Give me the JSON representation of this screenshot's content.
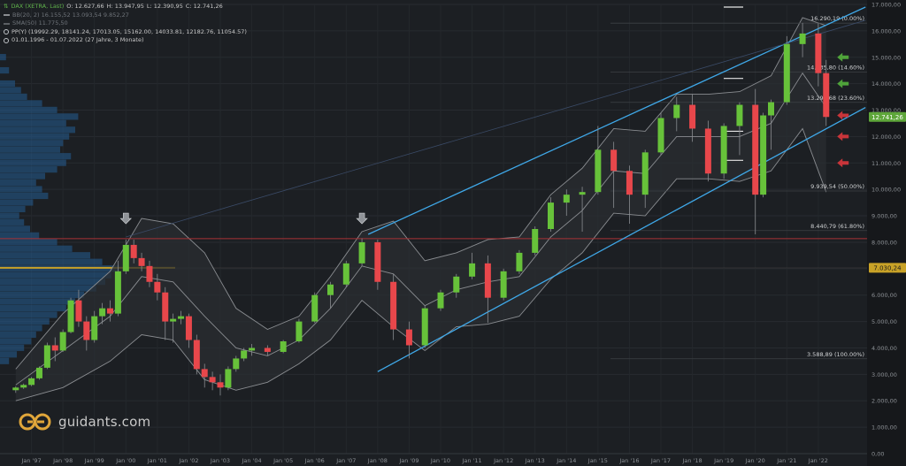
{
  "legend": {
    "main": "DAX (XETRA, Last)",
    "ohlc": {
      "o": "O: 12.627,66",
      "h": "H: 13.947,95",
      "l": "L: 12.390,95",
      "c": "C: 12.741,26"
    },
    "bb": "BB(20, 2)  16.155,52  13.093,54  9.852,27",
    "sma": "SMA(50)  11.775,50",
    "pp": "PP(Y)   (19992.29, 18141.24, 17013.05, 15162.00, 14033.81, 12182.76, 11054.57)",
    "range": "01.01.1996 - 01.07.2022   (27 Jahre, 3 Monate)"
  },
  "brand": {
    "text": "guidants.com"
  },
  "colors": {
    "bull": "#67c23a",
    "bear": "#e8474b",
    "channel": "#3fa8e8",
    "bollinger": "#8a8d91",
    "profile": "#245c94",
    "poc": "#c9a227"
  },
  "chart_data": {
    "type": "candlestick",
    "interval": "monthly",
    "y_scale": "linear",
    "ylim": [
      0,
      17000
    ],
    "y_ticks": [
      "17.000,00",
      "16.000,00",
      "15.000,00",
      "14.000,00",
      "13.000,00",
      "12.000,00",
      "11.000,00",
      "10.000,00",
      "9.000,00",
      "8.000,00",
      "7.000,00",
      "6.000,00",
      "5.000,00",
      "4.000,00",
      "3.000,00",
      "2.000,00",
      "1.000,00",
      "0,00"
    ],
    "x_ticks": [
      "Jan '97",
      "Jan '98",
      "Jan '99",
      "Jan '00",
      "Jan '01",
      "Jan '02",
      "Jan '03",
      "Jan '04",
      "Jan '05",
      "Jan '06",
      "Jan '07",
      "Jan '08",
      "Jan '09",
      "Jan '10",
      "Jan '11",
      "Jan '12",
      "Jan '13",
      "Jan '14",
      "Jan '15",
      "Jan '16",
      "Jan '17",
      "Jan '18",
      "Jan '19",
      "Jan '20",
      "Jan '21",
      "Jan '22"
    ],
    "last_price_label": "12.741,26",
    "poc_label": "7.030,24",
    "fib_levels": [
      {
        "label": "16.290,19 (0.00%)",
        "value": 16290.19
      },
      {
        "label": "14.435,80 (14.60%)",
        "value": 14435.8
      },
      {
        "label": "13.292,68 (23.60%)",
        "value": 13292.68
      },
      {
        "label": "9.939,54 (50.00%)",
        "value": 9939.54
      },
      {
        "label": "8.440,79 (61.80%)",
        "value": 8440.79
      },
      {
        "label": "3.588,89 (100.00%)",
        "value": 3588.89
      }
    ],
    "horizontal_line": 8136,
    "candles": [
      {
        "t": 1996.5,
        "o": 2400,
        "h": 2550,
        "l": 2300,
        "c": 2500
      },
      {
        "t": 1996.75,
        "o": 2500,
        "h": 2650,
        "l": 2450,
        "c": 2600
      },
      {
        "t": 1997.0,
        "o": 2600,
        "h": 2900,
        "l": 2550,
        "c": 2850
      },
      {
        "t": 1997.25,
        "o": 2850,
        "h": 3300,
        "l": 2800,
        "c": 3250
      },
      {
        "t": 1997.5,
        "o": 3250,
        "h": 4200,
        "l": 3200,
        "c": 4100
      },
      {
        "t": 1997.75,
        "o": 4100,
        "h": 4400,
        "l": 3500,
        "c": 3900
      },
      {
        "t": 1998.0,
        "o": 3900,
        "h": 4700,
        "l": 3850,
        "c": 4600
      },
      {
        "t": 1998.25,
        "o": 4600,
        "h": 5900,
        "l": 4550,
        "c": 5800
      },
      {
        "t": 1998.5,
        "o": 5800,
        "h": 6200,
        "l": 4800,
        "c": 5000
      },
      {
        "t": 1998.75,
        "o": 5000,
        "h": 5200,
        "l": 3900,
        "c": 4300
      },
      {
        "t": 1999.0,
        "o": 4300,
        "h": 5400,
        "l": 4200,
        "c": 5200
      },
      {
        "t": 1999.25,
        "o": 5200,
        "h": 5700,
        "l": 4900,
        "c": 5500
      },
      {
        "t": 1999.5,
        "o": 5500,
        "h": 5800,
        "l": 5000,
        "c": 5300
      },
      {
        "t": 1999.75,
        "o": 5300,
        "h": 7300,
        "l": 5200,
        "c": 6900
      },
      {
        "t": 2000.0,
        "o": 6900,
        "h": 8100,
        "l": 6800,
        "c": 7900
      },
      {
        "t": 2000.25,
        "o": 7900,
        "h": 8100,
        "l": 7200,
        "c": 7400
      },
      {
        "t": 2000.5,
        "o": 7400,
        "h": 7600,
        "l": 6900,
        "c": 7100
      },
      {
        "t": 2000.75,
        "o": 7100,
        "h": 7300,
        "l": 6300,
        "c": 6500
      },
      {
        "t": 2001.0,
        "o": 6500,
        "h": 6800,
        "l": 5800,
        "c": 6100
      },
      {
        "t": 2001.25,
        "o": 6100,
        "h": 6300,
        "l": 4300,
        "c": 5000
      },
      {
        "t": 2001.5,
        "o": 5000,
        "h": 5300,
        "l": 4200,
        "c": 5100
      },
      {
        "t": 2001.75,
        "o": 5100,
        "h": 5400,
        "l": 4900,
        "c": 5200
      },
      {
        "t": 2002.0,
        "o": 5200,
        "h": 5300,
        "l": 4000,
        "c": 4300
      },
      {
        "t": 2002.25,
        "o": 4300,
        "h": 4500,
        "l": 3000,
        "c": 3200
      },
      {
        "t": 2002.5,
        "o": 3200,
        "h": 3400,
        "l": 2500,
        "c": 2900
      },
      {
        "t": 2002.75,
        "o": 2900,
        "h": 3100,
        "l": 2400,
        "c": 2700
      },
      {
        "t": 2003.0,
        "o": 2700,
        "h": 3000,
        "l": 2200,
        "c": 2500
      },
      {
        "t": 2003.25,
        "o": 2500,
        "h": 3300,
        "l": 2400,
        "c": 3200
      },
      {
        "t": 2003.5,
        "o": 3200,
        "h": 3700,
        "l": 3100,
        "c": 3600
      },
      {
        "t": 2003.75,
        "o": 3600,
        "h": 4000,
        "l": 3500,
        "c": 3900
      },
      {
        "t": 2004.0,
        "o": 3900,
        "h": 4150,
        "l": 3700,
        "c": 4000
      },
      {
        "t": 2004.5,
        "o": 4000,
        "h": 4100,
        "l": 3700,
        "c": 3850
      },
      {
        "t": 2005.0,
        "o": 3850,
        "h": 4300,
        "l": 3800,
        "c": 4250
      },
      {
        "t": 2005.5,
        "o": 4250,
        "h": 5100,
        "l": 4200,
        "c": 5000
      },
      {
        "t": 2006.0,
        "o": 5000,
        "h": 6100,
        "l": 4950,
        "c": 6000
      },
      {
        "t": 2006.5,
        "o": 6000,
        "h": 6500,
        "l": 5500,
        "c": 6400
      },
      {
        "t": 2007.0,
        "o": 6400,
        "h": 7300,
        "l": 6300,
        "c": 7200
      },
      {
        "t": 2007.5,
        "o": 7200,
        "h": 8150,
        "l": 7100,
        "c": 8000
      },
      {
        "t": 2008.0,
        "o": 8000,
        "h": 8100,
        "l": 6200,
        "c": 6500
      },
      {
        "t": 2008.5,
        "o": 6500,
        "h": 6800,
        "l": 4300,
        "c": 4700
      },
      {
        "t": 2009.0,
        "o": 4700,
        "h": 5000,
        "l": 3600,
        "c": 4100
      },
      {
        "t": 2009.5,
        "o": 4100,
        "h": 5600,
        "l": 4000,
        "c": 5500
      },
      {
        "t": 2010.0,
        "o": 5500,
        "h": 6200,
        "l": 5400,
        "c": 6100
      },
      {
        "t": 2010.5,
        "o": 6100,
        "h": 6800,
        "l": 5900,
        "c": 6700
      },
      {
        "t": 2011.0,
        "o": 6700,
        "h": 7600,
        "l": 6600,
        "c": 7200
      },
      {
        "t": 2011.5,
        "o": 7200,
        "h": 7500,
        "l": 4950,
        "c": 5900
      },
      {
        "t": 2012.0,
        "o": 5900,
        "h": 7000,
        "l": 5800,
        "c": 6900
      },
      {
        "t": 2012.5,
        "o": 6900,
        "h": 7700,
        "l": 6800,
        "c": 7600
      },
      {
        "t": 2013.0,
        "o": 7600,
        "h": 8600,
        "l": 7500,
        "c": 8500
      },
      {
        "t": 2013.5,
        "o": 8500,
        "h": 9700,
        "l": 8400,
        "c": 9500
      },
      {
        "t": 2014.0,
        "o": 9500,
        "h": 10000,
        "l": 9000,
        "c": 9800
      },
      {
        "t": 2014.5,
        "o": 9800,
        "h": 10100,
        "l": 8400,
        "c": 9900
      },
      {
        "t": 2015.0,
        "o": 9900,
        "h": 12400,
        "l": 9800,
        "c": 11500
      },
      {
        "t": 2015.5,
        "o": 11500,
        "h": 11800,
        "l": 9300,
        "c": 10700
      },
      {
        "t": 2016.0,
        "o": 10700,
        "h": 10900,
        "l": 8700,
        "c": 9800
      },
      {
        "t": 2016.5,
        "o": 9800,
        "h": 11500,
        "l": 9300,
        "c": 11400
      },
      {
        "t": 2017.0,
        "o": 11400,
        "h": 12900,
        "l": 11300,
        "c": 12700
      },
      {
        "t": 2017.5,
        "o": 12700,
        "h": 13500,
        "l": 12200,
        "c": 13200
      },
      {
        "t": 2018.0,
        "o": 13200,
        "h": 13600,
        "l": 11800,
        "c": 12300
      },
      {
        "t": 2018.5,
        "o": 12300,
        "h": 12600,
        "l": 10300,
        "c": 10600
      },
      {
        "t": 2019.0,
        "o": 10600,
        "h": 12500,
        "l": 10400,
        "c": 12400
      },
      {
        "t": 2019.5,
        "o": 12400,
        "h": 13300,
        "l": 11300,
        "c": 13200
      },
      {
        "t": 2020.0,
        "o": 13200,
        "h": 13800,
        "l": 8300,
        "c": 9800
      },
      {
        "t": 2020.25,
        "o": 9800,
        "h": 12900,
        "l": 9700,
        "c": 12800
      },
      {
        "t": 2020.5,
        "o": 12800,
        "h": 13400,
        "l": 11500,
        "c": 13300
      },
      {
        "t": 2021.0,
        "o": 13300,
        "h": 15800,
        "l": 13200,
        "c": 15500
      },
      {
        "t": 2021.5,
        "o": 15500,
        "h": 16300,
        "l": 15000,
        "c": 15900
      },
      {
        "t": 2022.0,
        "o": 15900,
        "h": 16300,
        "l": 13900,
        "c": 14400
      },
      {
        "t": 2022.25,
        "o": 14400,
        "h": 14900,
        "l": 12400,
        "c": 12741
      }
    ],
    "bollinger": {
      "t": [
        1996.5,
        1998,
        1999.5,
        2000.5,
        2001.5,
        2002.5,
        2003.5,
        2004.5,
        2005.5,
        2006.5,
        2007.5,
        2008.5,
        2009.5,
        2010.5,
        2011.5,
        2012.5,
        2013.5,
        2014.5,
        2015.5,
        2016.5,
        2017.5,
        2018.5,
        2019.5,
        2020.5,
        2021.5,
        2022.25
      ],
      "upper": [
        3200,
        5300,
        6900,
        8900,
        8700,
        7600,
        5500,
        4700,
        5200,
        6700,
        8400,
        8800,
        7300,
        7600,
        8100,
        8200,
        9800,
        10800,
        12300,
        12200,
        13600,
        13600,
        13700,
        14300,
        16500,
        16200
      ],
      "middle": [
        2600,
        3900,
        5200,
        6700,
        6500,
        5200,
        4000,
        3700,
        4300,
        5500,
        7100,
        6800,
        5600,
        6200,
        6500,
        6700,
        8200,
        9200,
        10700,
        10600,
        12000,
        12000,
        12000,
        12500,
        14400,
        13100
      ],
      "lower": [
        2000,
        2500,
        3500,
        4500,
        4300,
        2800,
        2400,
        2700,
        3400,
        4300,
        5800,
        4800,
        3900,
        4800,
        4900,
        5200,
        6600,
        7600,
        9100,
        9000,
        10400,
        10400,
        10300,
        10700,
        12300,
        9900
      ]
    },
    "volume_profile": [
      {
        "p": 3500,
        "w": 15
      },
      {
        "p": 3750,
        "w": 28
      },
      {
        "p": 4000,
        "w": 40
      },
      {
        "p": 4250,
        "w": 52
      },
      {
        "p": 4500,
        "w": 60
      },
      {
        "p": 4750,
        "w": 70
      },
      {
        "p": 5000,
        "w": 82
      },
      {
        "p": 5250,
        "w": 95
      },
      {
        "p": 5500,
        "w": 110
      },
      {
        "p": 5750,
        "w": 125
      },
      {
        "p": 6000,
        "w": 140
      },
      {
        "p": 6250,
        "w": 160
      },
      {
        "p": 6500,
        "w": 175
      },
      {
        "p": 6750,
        "w": 185
      },
      {
        "p": 7000,
        "w": 198
      },
      {
        "p": 7250,
        "w": 170
      },
      {
        "p": 7500,
        "w": 150
      },
      {
        "p": 7750,
        "w": 120
      },
      {
        "p": 8000,
        "w": 95
      },
      {
        "p": 8250,
        "w": 65
      },
      {
        "p": 8500,
        "w": 50
      },
      {
        "p": 8750,
        "w": 40
      },
      {
        "p": 9000,
        "w": 32
      },
      {
        "p": 9250,
        "w": 42
      },
      {
        "p": 9500,
        "w": 55
      },
      {
        "p": 9750,
        "w": 80
      },
      {
        "p": 10000,
        "w": 70
      },
      {
        "p": 10250,
        "w": 60
      },
      {
        "p": 10500,
        "w": 75
      },
      {
        "p": 10750,
        "w": 95
      },
      {
        "p": 11000,
        "w": 110
      },
      {
        "p": 11250,
        "w": 118
      },
      {
        "p": 11500,
        "w": 100
      },
      {
        "p": 11750,
        "w": 105
      },
      {
        "p": 12000,
        "w": 115
      },
      {
        "p": 12250,
        "w": 125
      },
      {
        "p": 12500,
        "w": 110
      },
      {
        "p": 12750,
        "w": 130
      },
      {
        "p": 13000,
        "w": 95
      },
      {
        "p": 13250,
        "w": 70
      },
      {
        "p": 13500,
        "w": 45
      },
      {
        "p": 13750,
        "w": 35
      },
      {
        "p": 14000,
        "w": 25
      },
      {
        "p": 14500,
        "w": 15
      },
      {
        "p": 15000,
        "w": 10
      }
    ],
    "channel": {
      "upper": [
        [
          2007.7,
          8300
        ],
        [
          2023.5,
          16900
        ]
      ],
      "lower": [
        [
          2008.0,
          3100
        ],
        [
          2023.5,
          13100
        ]
      ],
      "mid": [
        [
          2000,
          8200
        ],
        [
          2023.5,
          16400
        ]
      ]
    },
    "markers_down": [
      {
        "t": 2000.0,
        "v": 8700
      },
      {
        "t": 2007.5,
        "v": 8700
      }
    ],
    "arrows_left": [
      {
        "t": 2022.6,
        "v": 15000,
        "color": "bull"
      },
      {
        "t": 2022.6,
        "v": 14000,
        "color": "bull"
      },
      {
        "t": 2022.6,
        "v": 12800,
        "color": "bear"
      },
      {
        "t": 2022.6,
        "v": 12000,
        "color": "bear"
      },
      {
        "t": 2022.6,
        "v": 11000,
        "color": "bear"
      }
    ],
    "pivot_ticks": [
      16900,
      14200,
      12200,
      11100
    ]
  }
}
